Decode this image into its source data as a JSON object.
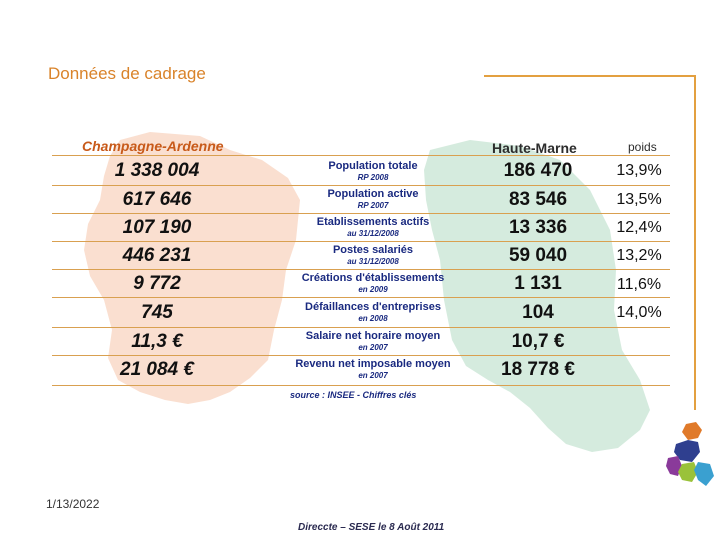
{
  "title": "Données de cadrage",
  "headers": {
    "champagne_ardenne": "Champagne-Ardenne",
    "haute_marne": "Haute-Marne",
    "poids": "poids"
  },
  "rows": [
    {
      "ca": "1 338 004",
      "label": "Population totale",
      "sub": "RP 2008",
      "hm": "186 470",
      "poids": "13,9%"
    },
    {
      "ca": "617 646",
      "label": "Population active",
      "sub": "RP 2007",
      "hm": "83 546",
      "poids": "13,5%"
    },
    {
      "ca": "107 190",
      "label": "Etablissements actifs",
      "sub": "au 31/12/2008",
      "hm": "13 336",
      "poids": "12,4%"
    },
    {
      "ca": "446 231",
      "label": "Postes salariés",
      "sub": "au 31/12/2008",
      "hm": "59 040",
      "poids": "13,2%"
    },
    {
      "ca": "9 772",
      "label": "Créations d'établissements",
      "sub": "en 2009",
      "hm": "1 131",
      "poids": "11,6%"
    },
    {
      "ca": "745",
      "label": "Défaillances d'entreprises",
      "sub": "en 2008",
      "hm": "104",
      "poids": "14,0%"
    },
    {
      "ca": "11,3 €",
      "label": "Salaire net horaire moyen",
      "sub": "en 2007",
      "hm": "10,7 €",
      "poids": ""
    },
    {
      "ca": "21 084 €",
      "label": "Revenu net imposable moyen",
      "sub": "en 2007",
      "hm": "18 778 €",
      "poids": ""
    }
  ],
  "source": "source : INSEE - Chiffres clés",
  "date": "1/13/2022",
  "footer": "Direccte – SESE le 8 Août 2011",
  "colors": {
    "title": "#d9832a",
    "frame": "#e3a040",
    "map_ca": "#f7d7c4",
    "map_hm": "#cfe6d8",
    "label_text": "#1a2a80",
    "header_ca": "#c85a1a"
  }
}
